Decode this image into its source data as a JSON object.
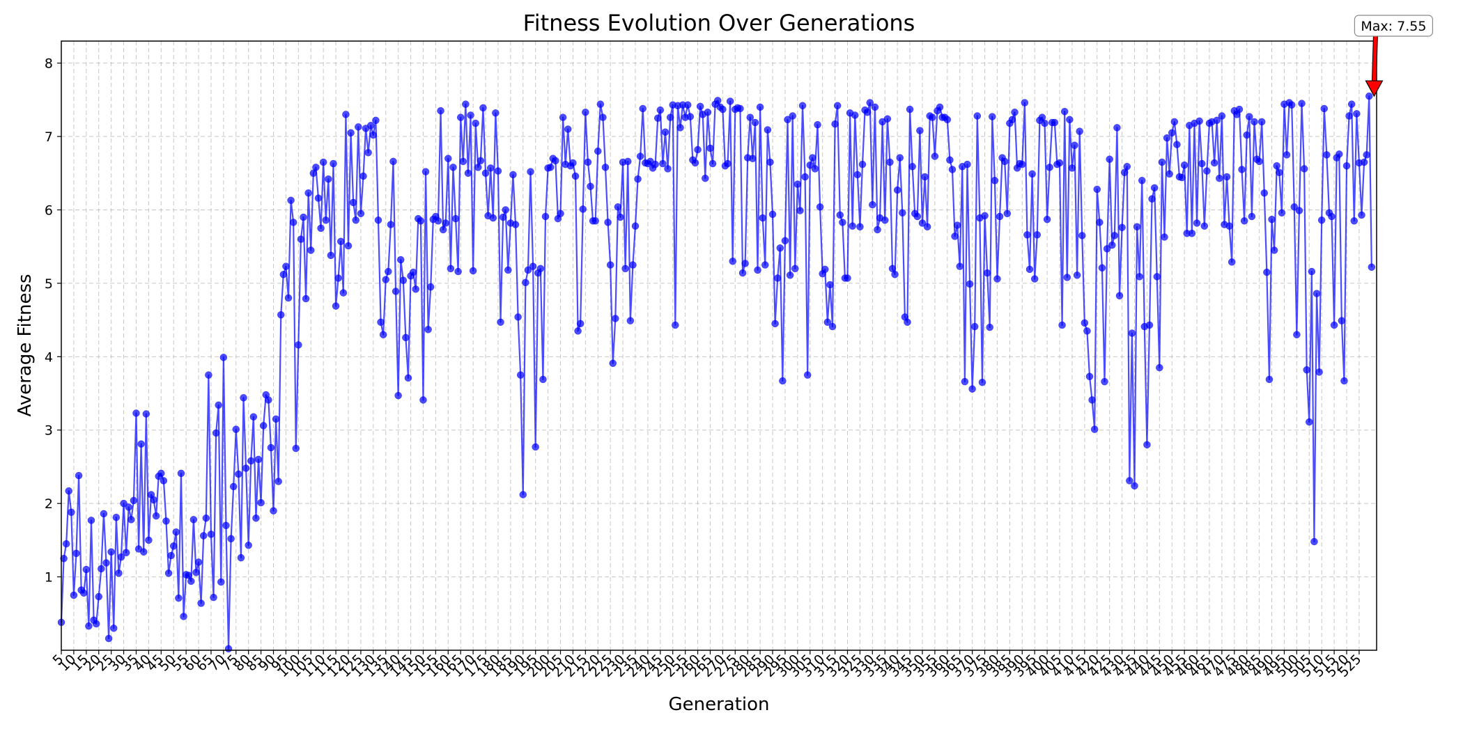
{
  "chart_data": {
    "type": "line",
    "title": "Fitness Evolution Over Generations",
    "xlabel": "Generation",
    "ylabel": "Average Fitness",
    "xlim": [
      5,
      532
    ],
    "ylim": [
      0,
      8.3
    ],
    "x_start": 5,
    "x_step": 1,
    "y_ticks": [
      1,
      2,
      3,
      4,
      5,
      6,
      7,
      8
    ],
    "x_tick_labels": [
      "5",
      "10",
      "15",
      "20",
      "25",
      "30",
      "35",
      "40",
      "45",
      "50",
      "55",
      "60",
      "65",
      "70",
      "75",
      "80",
      "85",
      "90",
      "95",
      "100",
      "105",
      "110",
      "115",
      "120",
      "125",
      "130",
      "135",
      "140",
      "145",
      "150",
      "155",
      "160",
      "165",
      "170",
      "175",
      "180",
      "185",
      "190",
      "195",
      "200",
      "205",
      "210",
      "215",
      "220",
      "225",
      "230",
      "235",
      "240",
      "245",
      "250",
      "255",
      "260",
      "265",
      "270",
      "275",
      "280",
      "285",
      "290",
      "295",
      "300",
      "305",
      "310",
      "315",
      "320",
      "325",
      "330",
      "335",
      "340",
      "345",
      "350",
      "355",
      "360",
      "365",
      "370",
      "375",
      "380",
      "385",
      "390",
      "395",
      "400",
      "405",
      "410",
      "415",
      "420",
      "425",
      "430",
      "435",
      "440",
      "445",
      "450",
      "455",
      "460",
      "465",
      "470",
      "475",
      "480",
      "485",
      "490",
      "495",
      "500",
      "505",
      "510",
      "515",
      "520",
      "525"
    ],
    "grid": true,
    "series": [
      {
        "color": "#0000ff",
        "values": [
          0.38,
          1.25,
          1.45,
          2.17,
          1.88,
          0.75,
          1.32,
          2.38,
          0.82,
          0.78,
          1.1,
          0.33,
          1.77,
          0.41,
          0.36,
          0.73,
          1.11,
          1.86,
          1.19,
          0.16,
          1.34,
          0.3,
          1.81,
          1.05,
          1.27,
          2.0,
          1.33,
          1.95,
          1.78,
          2.04,
          3.23,
          1.38,
          2.81,
          1.34,
          3.22,
          1.5,
          2.12,
          2.05,
          1.83,
          2.37,
          2.41,
          2.31,
          1.76,
          1.05,
          1.29,
          1.42,
          1.61,
          0.71,
          2.41,
          0.46,
          1.03,
          1.02,
          0.94,
          1.78,
          1.06,
          1.2,
          0.64,
          1.56,
          1.8,
          3.75,
          1.58,
          0.72,
          2.96,
          3.34,
          0.93,
          3.99,
          1.7,
          0.02,
          1.52,
          2.23,
          3.01,
          2.4,
          1.26,
          3.44,
          2.48,
          1.43,
          2.58,
          3.18,
          1.8,
          2.6,
          2.01,
          3.06,
          3.48,
          3.41,
          2.76,
          1.9,
          3.15,
          2.3,
          4.57,
          5.12,
          5.23,
          4.8,
          6.13,
          5.83,
          2.75,
          4.16,
          5.6,
          5.9,
          4.79,
          6.23,
          5.45,
          6.5,
          6.58,
          6.16,
          5.75,
          6.65,
          5.86,
          6.42,
          5.38,
          6.63,
          4.69,
          5.07,
          5.57,
          4.87,
          7.3,
          5.51,
          7.05,
          6.1,
          5.86,
          7.13,
          5.95,
          6.46,
          7.11,
          6.78,
          7.15,
          7.02,
          7.22,
          5.86,
          4.47,
          4.3,
          5.05,
          5.16,
          5.8,
          6.66,
          4.89,
          3.47,
          5.32,
          5.04,
          4.26,
          3.71,
          5.1,
          5.15,
          4.92,
          5.88,
          5.85,
          3.41,
          6.52,
          4.37,
          4.95,
          5.87,
          5.91,
          5.85,
          7.35,
          5.73,
          5.82,
          6.7,
          5.2,
          6.58,
          5.88,
          5.16,
          7.26,
          6.66,
          7.44,
          6.5,
          7.29,
          5.17,
          7.18,
          6.58,
          6.67,
          7.39,
          6.5,
          5.92,
          6.57,
          5.89,
          7.32,
          6.53,
          4.47,
          5.9,
          6.0,
          5.18,
          5.82,
          6.48,
          5.8,
          4.54,
          3.75,
          2.12,
          5.01,
          5.18,
          6.52,
          5.23,
          2.77,
          5.14,
          5.2,
          3.69,
          5.91,
          6.57,
          6.58,
          6.7,
          6.67,
          5.88,
          5.95,
          7.26,
          6.62,
          7.1,
          6.6,
          6.64,
          6.46,
          4.35,
          4.45,
          6.01,
          7.33,
          6.65,
          6.32,
          5.85,
          5.85,
          6.8,
          7.44,
          7.26,
          6.58,
          5.83,
          5.25,
          3.91,
          4.52,
          6.04,
          5.9,
          6.65,
          5.2,
          6.66,
          4.49,
          5.25,
          5.78,
          6.42,
          6.73,
          7.38,
          6.64,
          6.63,
          6.66,
          6.57,
          6.62,
          7.25,
          7.36,
          6.63,
          7.06,
          6.56,
          7.26,
          7.43,
          4.43,
          7.42,
          7.12,
          7.43,
          7.26,
          7.43,
          7.27,
          6.68,
          6.64,
          6.82,
          7.41,
          7.3,
          6.43,
          7.33,
          6.84,
          6.63,
          7.44,
          7.49,
          7.4,
          7.37,
          6.6,
          6.63,
          7.48,
          5.3,
          7.37,
          7.39,
          7.38,
          5.14,
          5.27,
          6.71,
          7.26,
          6.7,
          7.19,
          5.18,
          7.4,
          5.89,
          5.25,
          7.09,
          6.65,
          5.94,
          4.45,
          5.07,
          5.48,
          3.67,
          5.58,
          7.23,
          5.11,
          7.28,
          5.2,
          6.35,
          5.99,
          7.42,
          6.45,
          3.75,
          6.61,
          6.71,
          6.56,
          7.16,
          6.04,
          5.13,
          5.19,
          4.47,
          4.98,
          4.41,
          7.17,
          7.42,
          5.93,
          5.83,
          5.07,
          5.07,
          7.32,
          5.78,
          7.29,
          6.48,
          5.77,
          6.62,
          7.36,
          7.33,
          7.46,
          6.07,
          7.4,
          5.73,
          5.89,
          7.2,
          5.86,
          7.24,
          6.65,
          5.2,
          5.12,
          6.27,
          6.71,
          5.96,
          4.54,
          4.47,
          7.37,
          6.59,
          5.95,
          5.91,
          7.08,
          5.82,
          6.45,
          5.77,
          7.28,
          7.26,
          6.73,
          7.35,
          7.4,
          7.26,
          7.26,
          7.23,
          6.68,
          6.55,
          5.64,
          5.79,
          5.23,
          6.59,
          3.66,
          6.62,
          4.99,
          3.56,
          4.41,
          7.28,
          5.89,
          3.65,
          5.92,
          5.14,
          4.4,
          7.27,
          6.4,
          5.06,
          5.91,
          6.71,
          6.66,
          5.95,
          7.18,
          7.23,
          7.33,
          6.57,
          6.63,
          6.62,
          7.46,
          5.66,
          5.19,
          6.49,
          5.06,
          5.66,
          7.22,
          7.26,
          7.18,
          5.87,
          6.58,
          7.19,
          7.19,
          6.62,
          6.64,
          4.43,
          7.34,
          5.08,
          7.23,
          6.57,
          6.88,
          5.11,
          7.07,
          5.65,
          4.46,
          4.35,
          3.73,
          3.41,
          3.01,
          6.28,
          5.83,
          5.21,
          3.66,
          5.47,
          6.69,
          5.52,
          5.65,
          7.12,
          4.83,
          5.76,
          6.51,
          6.59,
          2.31,
          4.32,
          2.24,
          5.77,
          5.09,
          6.4,
          4.41,
          2.8,
          4.43,
          6.15,
          6.3,
          5.09,
          3.85,
          6.65,
          5.63,
          6.98,
          6.49,
          7.05,
          7.2,
          6.89,
          6.45,
          6.44,
          6.61,
          5.68,
          7.15,
          5.68,
          7.18,
          5.82,
          7.21,
          6.63,
          5.78,
          6.53,
          7.18,
          7.2,
          6.64,
          7.22,
          6.43,
          7.28,
          5.8,
          6.45,
          5.78,
          5.29,
          7.35,
          7.3,
          7.37,
          6.55,
          5.85,
          7.02,
          7.27,
          5.91,
          7.2,
          6.69,
          6.66,
          7.2,
          6.23,
          5.15,
          3.69,
          5.87,
          5.45,
          6.6,
          6.51,
          5.96,
          7.44,
          6.75,
          7.46,
          7.43,
          6.04,
          4.3,
          5.99,
          7.45,
          6.56,
          3.82,
          3.11,
          5.16,
          1.48,
          4.86,
          3.79,
          5.86,
          7.38,
          6.75,
          5.96,
          5.91,
          4.43,
          6.71,
          6.76,
          4.49,
          3.67,
          6.6,
          7.28,
          7.44,
          5.85,
          7.31,
          6.64,
          5.93,
          6.65,
          6.75,
          7.55,
          5.22
        ]
      }
    ],
    "annotations": [
      {
        "text": "Max: 7.55",
        "x": 531,
        "y": 7.55,
        "arrow_color": "#ff0000"
      }
    ]
  }
}
